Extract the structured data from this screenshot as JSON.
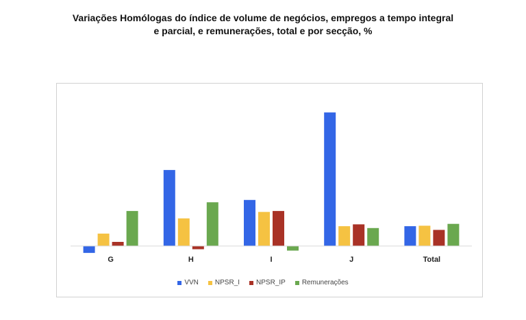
{
  "chart_data": {
    "type": "bar",
    "title_line1": "Variações Homólogas do índice de volume de negócios, empregos a tempo integral",
    "title_line2": "e parcial, e remunerações, total e por secção, %",
    "categories": [
      "G",
      "H",
      "I",
      "J",
      "Total"
    ],
    "series": [
      {
        "name": "VVN",
        "color": "#3366e6",
        "values": [
          -1.5,
          16.5,
          10.0,
          29.0,
          4.3
        ]
      },
      {
        "name": "NPSR_I",
        "color": "#f5c242",
        "values": [
          2.7,
          6.0,
          7.4,
          4.3,
          4.4
        ]
      },
      {
        "name": "NPSR_IP",
        "color": "#a93226",
        "values": [
          0.9,
          -0.7,
          7.6,
          4.7,
          3.5
        ]
      },
      {
        "name": "Remunerações",
        "color": "#6aa84f",
        "values": [
          7.6,
          9.5,
          -1.0,
          3.9,
          4.8
        ]
      }
    ],
    "ylim": [
      -2,
      30
    ],
    "grid": false,
    "legend_position": "bottom"
  }
}
